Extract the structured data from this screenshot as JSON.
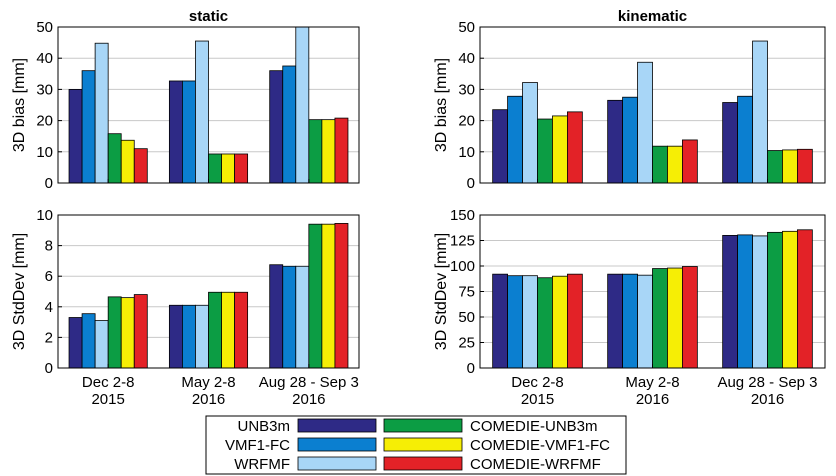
{
  "chart_data": [
    {
      "type": "bar",
      "title": "static",
      "ylabel": "3D bias [mm]",
      "ylim": [
        0,
        50
      ],
      "yticks": [
        0,
        10,
        20,
        30,
        40,
        50
      ],
      "grid": true,
      "categories": [
        "Dec 2-8\n2015",
        "May 2-8\n2016",
        "Aug 28 - Sep 3\n2016"
      ],
      "show_xticklabels": false,
      "series": [
        {
          "name": "UNB3m",
          "values": [
            30,
            32.7,
            36
          ]
        },
        {
          "name": "VMF1-FC",
          "values": [
            36,
            32.7,
            37.5
          ]
        },
        {
          "name": "WRFMF",
          "values": [
            44.8,
            45.5,
            50
          ]
        },
        {
          "name": "COMEDIE-UNB3m",
          "values": [
            15.8,
            9.3,
            20.3
          ]
        },
        {
          "name": "COMEDIE-VMF1-FC",
          "values": [
            13.7,
            9.3,
            20.3
          ]
        },
        {
          "name": "COMEDIE-WRFMF",
          "values": [
            11,
            9.3,
            20.8
          ]
        }
      ]
    },
    {
      "type": "bar",
      "title": "kinematic",
      "ylabel": "3D bias [mm]",
      "ylim": [
        0,
        50
      ],
      "yticks": [
        0,
        10,
        20,
        30,
        40,
        50
      ],
      "grid": true,
      "categories": [
        "Dec 2-8\n2015",
        "May 2-8\n2016",
        "Aug 28 - Sep 3\n2016"
      ],
      "show_xticklabels": false,
      "series": [
        {
          "name": "UNB3m",
          "values": [
            23.5,
            26.5,
            25.8
          ]
        },
        {
          "name": "VMF1-FC",
          "values": [
            27.8,
            27.5,
            27.8
          ]
        },
        {
          "name": "WRFMF",
          "values": [
            32.2,
            38.7,
            45.5
          ]
        },
        {
          "name": "COMEDIE-UNB3m",
          "values": [
            20.5,
            11.8,
            10.4
          ]
        },
        {
          "name": "COMEDIE-VMF1-FC",
          "values": [
            21.5,
            11.8,
            10.6
          ]
        },
        {
          "name": "COMEDIE-WRFMF",
          "values": [
            22.8,
            13.8,
            10.8
          ]
        }
      ]
    },
    {
      "type": "bar",
      "title": "",
      "ylabel": "3D StdDev [mm]",
      "ylim": [
        0,
        10
      ],
      "yticks": [
        0,
        2,
        4,
        6,
        8,
        10
      ],
      "grid": true,
      "categories": [
        "Dec 2-8\n2015",
        "May 2-8\n2016",
        "Aug 28 - Sep 3\n2016"
      ],
      "show_xticklabels": true,
      "series": [
        {
          "name": "UNB3m",
          "values": [
            3.3,
            4.1,
            6.75
          ]
        },
        {
          "name": "VMF1-FC",
          "values": [
            3.55,
            4.1,
            6.65
          ]
        },
        {
          "name": "WRFMF",
          "values": [
            3.1,
            4.1,
            6.65
          ]
        },
        {
          "name": "COMEDIE-UNB3m",
          "values": [
            4.65,
            4.95,
            9.4
          ]
        },
        {
          "name": "COMEDIE-VMF1-FC",
          "values": [
            4.6,
            4.95,
            9.4
          ]
        },
        {
          "name": "COMEDIE-WRFMF",
          "values": [
            4.8,
            4.95,
            9.45
          ]
        }
      ]
    },
    {
      "type": "bar",
      "title": "",
      "ylabel": "3D StdDev [mm]",
      "ylim": [
        0,
        150
      ],
      "yticks": [
        0,
        25,
        50,
        75,
        100,
        125,
        150
      ],
      "grid": true,
      "categories": [
        "Dec 2-8\n2015",
        "May 2-8\n2016",
        "Aug 28 - Sep 3\n2016"
      ],
      "show_xticklabels": true,
      "series": [
        {
          "name": "UNB3m",
          "values": [
            92,
            92,
            130
          ]
        },
        {
          "name": "VMF1-FC",
          "values": [
            90.5,
            92,
            130.5
          ]
        },
        {
          "name": "WRFMF",
          "values": [
            90.5,
            91,
            129.5
          ]
        },
        {
          "name": "COMEDIE-UNB3m",
          "values": [
            88.5,
            97.5,
            133
          ]
        },
        {
          "name": "COMEDIE-VMF1-FC",
          "values": [
            90,
            98,
            134
          ]
        },
        {
          "name": "COMEDIE-WRFMF",
          "values": [
            92,
            99.5,
            135.5
          ]
        }
      ]
    }
  ],
  "legend": {
    "placement": "bottom-center",
    "entries": [
      {
        "name": "UNB3m",
        "color": "#2e2a86"
      },
      {
        "name": "VMF1-FC",
        "color": "#0b7fd0"
      },
      {
        "name": "WRFMF",
        "color": "#a8d6f7"
      },
      {
        "name": "COMEDIE-UNB3m",
        "color": "#0c9d44"
      },
      {
        "name": "COMEDIE-VMF1-FC",
        "color": "#f6ee05"
      },
      {
        "name": "COMEDIE-WRFMF",
        "color": "#e32227"
      }
    ]
  },
  "colors": [
    "#2e2a86",
    "#0b7fd0",
    "#a8d6f7",
    "#0c9d44",
    "#f6ee05",
    "#e32227"
  ]
}
